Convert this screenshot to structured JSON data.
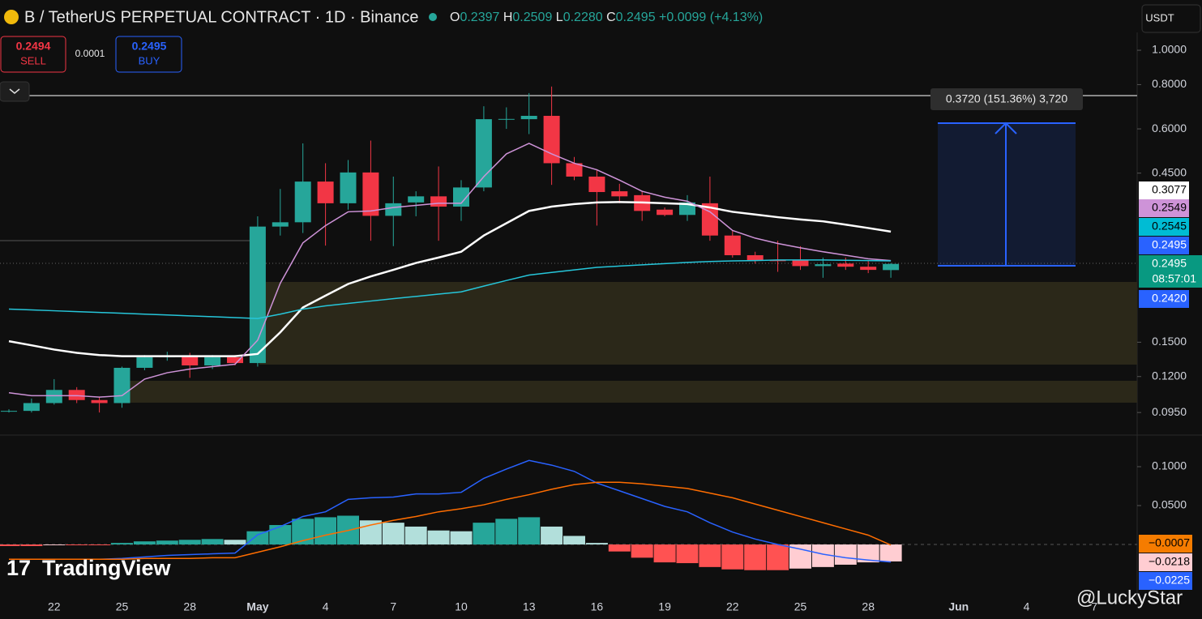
{
  "header": {
    "symbol": "B / TetherUS PERPETUAL CONTRACT · 1D · Binance",
    "ohlc": [
      [
        "O",
        "0.2397"
      ],
      [
        "H",
        "0.2509"
      ],
      [
        "L",
        "0.2280"
      ],
      [
        "C",
        "0.2495"
      ]
    ],
    "change": "+0.0099 (+4.13%)"
  },
  "trade": {
    "sell_price": "0.2494",
    "sell": "SELL",
    "spread": "0.0001",
    "buy_price": "0.2495",
    "buy": "BUY"
  },
  "currency": "USDT",
  "measure": "0.3720 (151.36%) 3,720",
  "price_tags": [
    "0.3077",
    "0.2549",
    "0.2545",
    "0.2495",
    "0.2495",
    "08:57:01",
    "0.2420"
  ],
  "macd_tags": [
    "−0.0007",
    "−0.0218",
    "−0.0225"
  ],
  "watermark": "TradingView",
  "author": "@LuckyStar",
  "chart_data": [
    {
      "type": "candlestick",
      "log_scale": true,
      "up_color": "#26a69a",
      "down_color": "#f23645",
      "categories": [
        null,
        null,
        "22",
        null,
        null,
        "25",
        null,
        null,
        "28",
        null,
        null,
        "May",
        null,
        null,
        "4",
        null,
        null,
        "7",
        null,
        null,
        "10",
        null,
        null,
        "13",
        null,
        null,
        "16",
        null,
        null,
        "19",
        null,
        null,
        "22",
        null,
        null,
        "25",
        null,
        null,
        "28",
        null,
        null,
        null,
        "Jun",
        null,
        null,
        "4",
        null,
        null,
        "7"
      ],
      "open": [
        0.096,
        0.096,
        0.101,
        0.11,
        0.103,
        0.101,
        0.127,
        0.136,
        0.137,
        0.129,
        0.136,
        0.131,
        0.318,
        0.327,
        0.426,
        0.37,
        0.452,
        0.341,
        0.372,
        0.387,
        0.362,
        0.41,
        0.639,
        0.639,
        0.653,
        0.48,
        0.44,
        0.4,
        0.39,
        0.355,
        0.343,
        0.37,
        0.3,
        0.264,
        0.256,
        0.256,
        0.246,
        0.25,
        0.245,
        0.2397,
        null,
        null,
        null,
        null,
        null,
        null,
        null,
        null,
        null
      ],
      "high": [
        0.097,
        0.104,
        0.118,
        0.112,
        0.105,
        0.128,
        0.138,
        0.141,
        0.14,
        0.138,
        0.138,
        0.34,
        0.406,
        0.546,
        0.48,
        0.49,
        0.556,
        0.44,
        0.4,
        0.47,
        0.43,
        0.695,
        0.69,
        0.757,
        0.79,
        0.5,
        0.46,
        0.42,
        0.4,
        0.36,
        0.39,
        0.44,
        0.31,
        0.27,
        0.29,
        0.28,
        0.26,
        0.26,
        0.255,
        0.2509,
        null,
        null,
        null,
        null,
        null,
        null,
        null,
        null,
        null
      ],
      "low": [
        0.095,
        0.095,
        0.1,
        0.101,
        0.095,
        0.098,
        0.125,
        0.133,
        0.119,
        0.126,
        0.129,
        0.128,
        0.3,
        0.305,
        0.281,
        0.355,
        0.29,
        0.28,
        0.34,
        0.29,
        0.33,
        0.4,
        0.6,
        0.58,
        0.417,
        0.43,
        0.32,
        0.37,
        0.33,
        0.34,
        0.33,
        0.29,
        0.26,
        0.25,
        0.237,
        0.24,
        0.228,
        0.24,
        0.235,
        0.228,
        null,
        null,
        null,
        null,
        null,
        null,
        null,
        null,
        null
      ],
      "close": [
        0.096,
        0.101,
        0.11,
        0.103,
        0.101,
        0.127,
        0.136,
        0.137,
        0.129,
        0.136,
        0.131,
        0.318,
        0.327,
        0.426,
        0.37,
        0.452,
        0.341,
        0.37,
        0.387,
        0.362,
        0.41,
        0.639,
        0.64,
        0.653,
        0.48,
        0.44,
        0.398,
        0.387,
        0.352,
        0.343,
        0.372,
        0.3,
        0.264,
        0.255,
        0.254,
        0.246,
        0.249,
        0.245,
        0.24,
        0.2495,
        null,
        null,
        null,
        null,
        null,
        null,
        null,
        null,
        null
      ],
      "series": [
        {
          "color": "#ffffff",
          "values": [
            0.151,
            0.147,
            0.143,
            0.14,
            0.138,
            0.137,
            0.137,
            0.137,
            0.137,
            0.137,
            0.137,
            0.139,
            0.16,
            0.188,
            0.203,
            0.219,
            0.23,
            0.24,
            0.251,
            0.26,
            0.27,
            0.3,
            0.325,
            0.352,
            0.362,
            0.368,
            0.372,
            0.373,
            0.372,
            0.37,
            0.368,
            0.36,
            0.35,
            0.344,
            0.338,
            0.333,
            0.329,
            0.322,
            0.315,
            0.3077,
            null,
            null,
            null,
            null,
            null,
            null,
            null,
            null,
            null
          ]
        },
        {
          "color": "#ce93d8",
          "values": [
            0.108,
            0.106,
            0.106,
            0.106,
            0.105,
            0.106,
            0.118,
            0.123,
            0.126,
            0.128,
            0.13,
            0.152,
            0.22,
            0.286,
            0.32,
            0.35,
            0.352,
            0.36,
            0.365,
            0.37,
            0.37,
            0.44,
            0.51,
            0.546,
            0.51,
            0.48,
            0.46,
            0.43,
            0.4,
            0.385,
            0.375,
            0.35,
            0.31,
            0.295,
            0.285,
            0.277,
            0.27,
            0.264,
            0.258,
            0.2549,
            null,
            null,
            null,
            null,
            null,
            null,
            null,
            null,
            null
          ]
        },
        {
          "color": "#26c6da",
          "values": [
            0.186,
            0.185,
            0.184,
            0.183,
            0.182,
            0.181,
            0.18,
            0.179,
            0.178,
            0.177,
            0.176,
            0.175,
            0.18,
            0.186,
            0.19,
            0.193,
            0.196,
            0.199,
            0.202,
            0.205,
            0.208,
            0.216,
            0.224,
            0.232,
            0.236,
            0.24,
            0.244,
            0.246,
            0.248,
            0.25,
            0.252,
            0.2535,
            0.2545,
            0.255,
            0.256,
            0.256,
            0.256,
            0.2555,
            0.255,
            0.2545,
            null,
            null,
            null,
            null,
            null,
            null,
            null,
            null,
            null
          ]
        }
      ],
      "ylim": [
        0.0829,
        1.123
      ],
      "yticks": [
        {
          "value": 1.0,
          "label": "1.0000"
        },
        {
          "value": 0.8,
          "label": "0.8000"
        },
        {
          "value": 0.6,
          "label": "0.6000"
        },
        {
          "value": 0.45,
          "label": "0.4500"
        },
        {
          "value": 0.15,
          "label": "0.1500"
        },
        {
          "value": 0.12,
          "label": "0.1200"
        },
        {
          "value": 0.095,
          "label": "0.0950"
        }
      ]
    },
    {
      "type": "macd",
      "histogram": [
        -0.002,
        -0.002,
        -0.001,
        -0.001,
        -0.001,
        0.002,
        0.004,
        0.005,
        0.006,
        0.007,
        0.006,
        0.017,
        0.025,
        0.033,
        0.035,
        0.037,
        0.031,
        0.028,
        0.023,
        0.018,
        0.017,
        0.028,
        0.033,
        0.035,
        0.023,
        0.011,
        0.002,
        -0.009,
        -0.017,
        -0.023,
        -0.024,
        -0.029,
        -0.032,
        -0.033,
        -0.033,
        -0.031,
        -0.029,
        -0.026,
        -0.023,
        -0.0218,
        null,
        null,
        null,
        null,
        null,
        null,
        null,
        null,
        null
      ],
      "histogram_colors": {
        "up_rising": "#26a69a",
        "up_falling": "#b2dfdb",
        "down_falling": "#ff5252",
        "down_rising": "#ffcdd2"
      },
      "series": [
        {
          "color": "#2962ff",
          "values": [
            -0.019,
            -0.019,
            -0.019,
            -0.019,
            -0.019,
            -0.018,
            -0.016,
            -0.014,
            -0.013,
            -0.012,
            -0.011,
            0.0125,
            0.023,
            0.036,
            0.042,
            0.058,
            0.06,
            0.061,
            0.065,
            0.065,
            0.067,
            0.085,
            0.097,
            0.108,
            0.102,
            0.094,
            0.079,
            0.069,
            0.059,
            0.049,
            0.042,
            0.028,
            0.016,
            0.007,
            0,
            -0.006,
            -0.0125,
            -0.017,
            -0.02,
            -0.0225,
            null,
            null,
            null,
            null,
            null,
            null,
            null,
            null,
            null
          ]
        },
        {
          "color": "#ff6d00",
          "values": [
            -0.019,
            -0.019,
            -0.019,
            -0.019,
            -0.019,
            -0.019,
            -0.018,
            -0.018,
            -0.018,
            -0.017,
            -0.017,
            -0.01,
            -0.003,
            0.005,
            0.012,
            0.018,
            0.025,
            0.031,
            0.036,
            0.042,
            0.046,
            0.051,
            0.058,
            0.064,
            0.071,
            0.077,
            0.08,
            0.08,
            0.078,
            0.075,
            0.072,
            0.066,
            0.06,
            0.052,
            0.044,
            0.036,
            0.028,
            0.02,
            0.012,
            -0.0007,
            null,
            null,
            null,
            null,
            null,
            null,
            null,
            null,
            null
          ]
        }
      ],
      "ylim": [
        -0.0708,
        0.1375
      ],
      "yticks": [
        {
          "value": 0.1,
          "label": "0.1000"
        },
        {
          "value": 0.05,
          "label": "0.0500"
        }
      ]
    }
  ]
}
